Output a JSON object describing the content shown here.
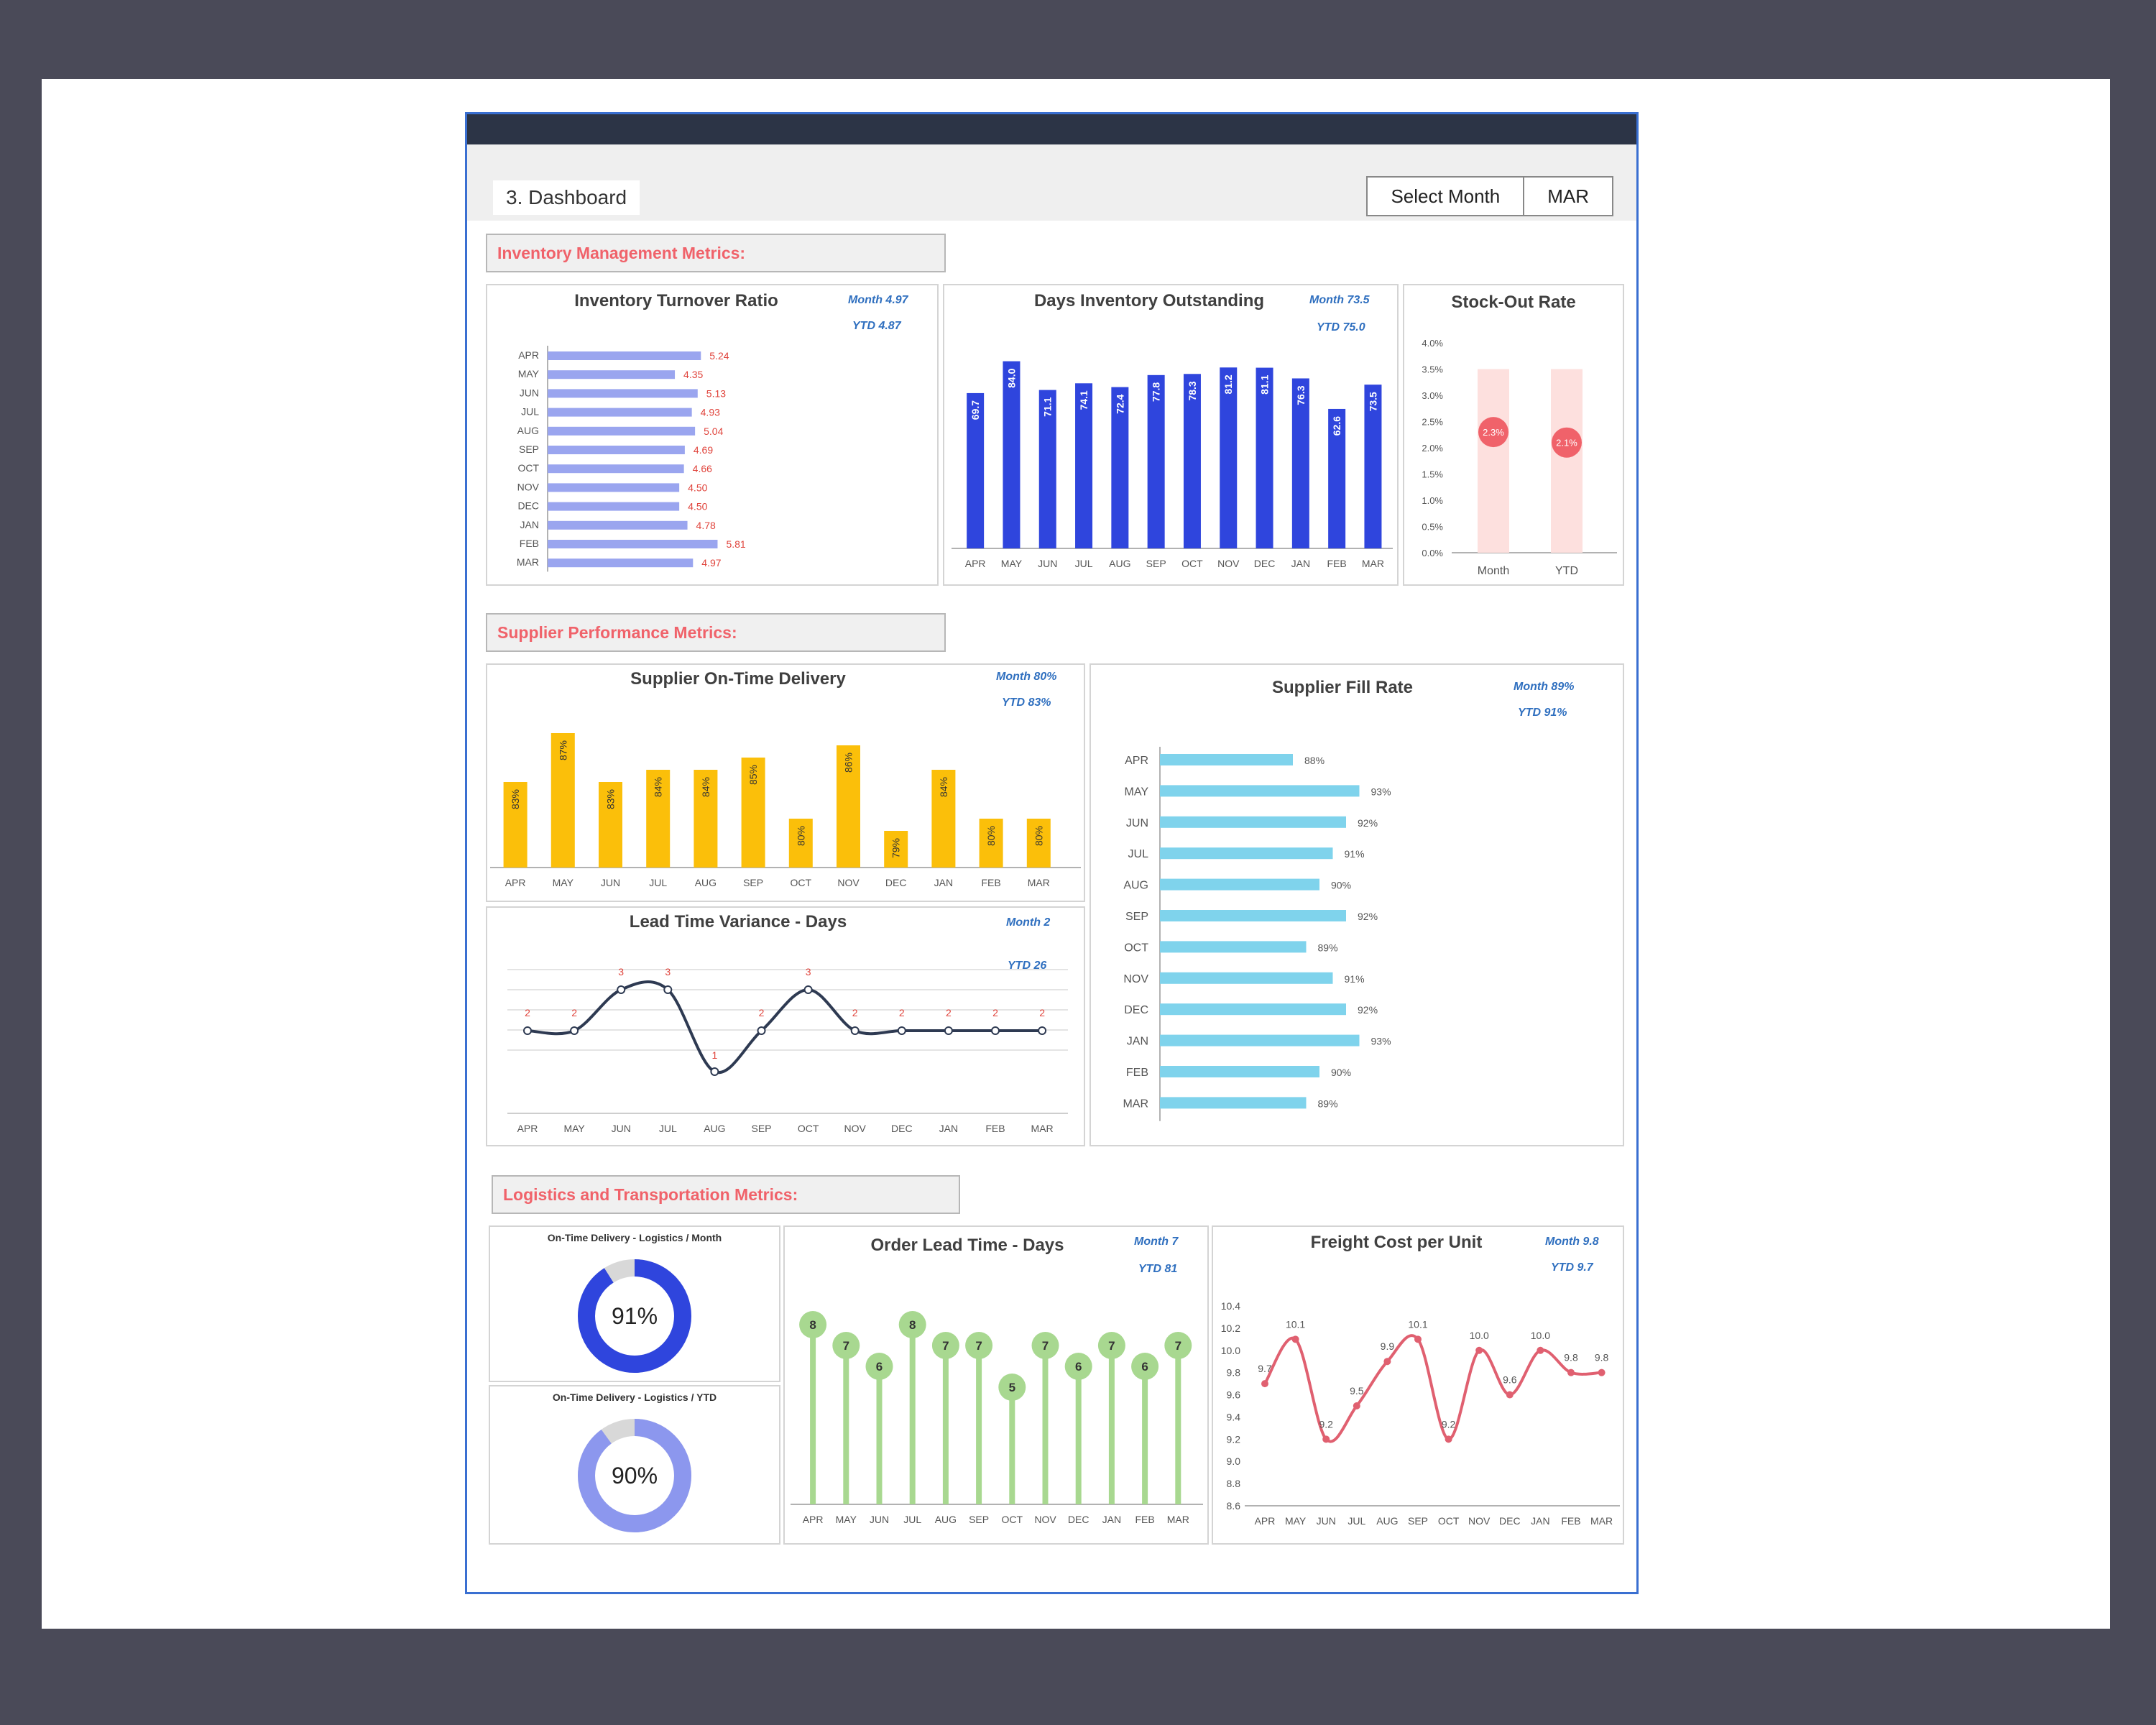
{
  "header": {
    "title": "3. Dashboard",
    "select_label": "Select Month",
    "select_value": "MAR"
  },
  "sections": {
    "inventory": "Inventory Management Metrics:",
    "supplier": "Supplier Performance Metrics:",
    "logistics": "Logistics and Transportation Metrics:"
  },
  "kpis": {
    "turnover": {
      "month": "Month 4.97",
      "ytd": "YTD 4.87"
    },
    "dio": {
      "month": "Month 73.5",
      "ytd": "YTD 75.0"
    },
    "otd": {
      "month": "Month 80%",
      "ytd": "YTD 83%"
    },
    "ltv": {
      "month": "Month 2",
      "ytd": "YTD 26"
    },
    "fill": {
      "month": "Month 89%",
      "ytd": "YTD 91%"
    },
    "olt": {
      "month": "Month 7",
      "ytd": "YTD 81"
    },
    "freight": {
      "month": "Month 9.8",
      "ytd": "YTD 9.7"
    }
  },
  "chart_data": [
    {
      "id": "turnover",
      "type": "bar",
      "orientation": "horizontal",
      "title": "Inventory Turnover Ratio",
      "categories": [
        "APR",
        "MAY",
        "JUN",
        "JUL",
        "AUG",
        "SEP",
        "OCT",
        "NOV",
        "DEC",
        "JAN",
        "FEB",
        "MAR"
      ],
      "values": [
        5.24,
        4.35,
        5.13,
        4.93,
        5.04,
        4.69,
        4.66,
        4.5,
        4.5,
        4.78,
        5.81,
        4.97
      ],
      "labels": [
        "5.24",
        "4.35",
        "5.13",
        "4.93",
        "5.04",
        "4.69",
        "4.66",
        "4.50",
        "4.50",
        "4.78",
        "5.81",
        "4.97"
      ],
      "color": "#9aa5ef",
      "label_color": "#e0443c"
    },
    {
      "id": "dio",
      "type": "bar",
      "title": "Days Inventory Outstanding",
      "categories": [
        "APR",
        "MAY",
        "JUN",
        "JUL",
        "AUG",
        "SEP",
        "OCT",
        "NOV",
        "DEC",
        "JAN",
        "FEB",
        "MAR"
      ],
      "values": [
        69.7,
        84.0,
        71.1,
        74.1,
        72.4,
        77.8,
        78.3,
        81.2,
        81.1,
        76.3,
        62.6,
        73.5
      ],
      "labels": [
        "69.7",
        "84.0",
        "71.1",
        "74.1",
        "72.4",
        "77.8",
        "78.3",
        "81.2",
        "81.1",
        "76.3",
        "62.6",
        "73.5"
      ],
      "color": "#2f45dd"
    },
    {
      "id": "stockout",
      "type": "scatter",
      "title": "Stock-Out Rate",
      "categories": [
        "Month",
        "YTD"
      ],
      "values": [
        2.3,
        2.1
      ],
      "labels": [
        "2.3%",
        "2.1%"
      ],
      "ylim": [
        0,
        4
      ],
      "yticks": [
        "0.0%",
        "0.5%",
        "1.0%",
        "1.5%",
        "2.0%",
        "2.5%",
        "3.0%",
        "3.5%",
        "4.0%"
      ],
      "color": "#f0626a",
      "band_color": "#fde0de"
    },
    {
      "id": "otd",
      "type": "bar",
      "title": "Supplier On-Time Delivery",
      "categories": [
        "APR",
        "MAY",
        "JUN",
        "JUL",
        "AUG",
        "SEP",
        "OCT",
        "NOV",
        "DEC",
        "JAN",
        "FEB",
        "MAR"
      ],
      "values": [
        83,
        87,
        83,
        84,
        84,
        85,
        80,
        86,
        79,
        84,
        80,
        80
      ],
      "labels": [
        "83%",
        "87%",
        "83%",
        "84%",
        "84%",
        "85%",
        "80%",
        "86%",
        "79%",
        "84%",
        "80%",
        "80%"
      ],
      "color": "#fbbf0a"
    },
    {
      "id": "ltv",
      "type": "line",
      "title": "Lead Time Variance - Days",
      "categories": [
        "APR",
        "MAY",
        "JUN",
        "JUL",
        "AUG",
        "SEP",
        "OCT",
        "NOV",
        "DEC",
        "JAN",
        "FEB",
        "MAR"
      ],
      "values": [
        2,
        2,
        3,
        3,
        1,
        2,
        3,
        2,
        2,
        2,
        2,
        2
      ],
      "labels": [
        "2",
        "2",
        "3",
        "3",
        "1",
        "2",
        "3",
        "2",
        "2",
        "2",
        "2",
        "2"
      ],
      "color": "#2e3a52"
    },
    {
      "id": "fill",
      "type": "bar",
      "orientation": "horizontal",
      "title": "Supplier Fill Rate",
      "categories": [
        "APR",
        "MAY",
        "JUN",
        "JUL",
        "AUG",
        "SEP",
        "OCT",
        "NOV",
        "DEC",
        "JAN",
        "FEB",
        "MAR"
      ],
      "values": [
        88,
        93,
        92,
        91,
        90,
        92,
        89,
        91,
        92,
        93,
        90,
        89
      ],
      "labels": [
        "88%",
        "93%",
        "92%",
        "91%",
        "90%",
        "92%",
        "89%",
        "91%",
        "92%",
        "93%",
        "90%",
        "89%"
      ],
      "color": "#7fd3ec"
    },
    {
      "id": "donut_month",
      "type": "pie",
      "title": "On-Time Delivery - Logistics / Month",
      "values": [
        91
      ],
      "labels": [
        "91%"
      ],
      "color": "#2f45dd"
    },
    {
      "id": "donut_ytd",
      "type": "pie",
      "title": "On-Time Delivery - Logistics / YTD",
      "values": [
        90
      ],
      "labels": [
        "90%"
      ],
      "color": "#8c97ee"
    },
    {
      "id": "olt",
      "type": "bar",
      "title": "Order Lead Time - Days",
      "categories": [
        "APR",
        "MAY",
        "JUN",
        "JUL",
        "AUG",
        "SEP",
        "OCT",
        "NOV",
        "DEC",
        "JAN",
        "FEB",
        "MAR"
      ],
      "values": [
        8,
        7,
        6,
        8,
        7,
        7,
        5,
        7,
        6,
        7,
        6,
        7
      ],
      "labels": [
        "8",
        "7",
        "6",
        "8",
        "7",
        "7",
        "5",
        "7",
        "6",
        "7",
        "6",
        "7"
      ],
      "color": "#a8d890"
    },
    {
      "id": "freight",
      "type": "line",
      "title": "Freight Cost per Unit",
      "categories": [
        "APR",
        "MAY",
        "JUN",
        "JUL",
        "AUG",
        "SEP",
        "OCT",
        "NOV",
        "DEC",
        "JAN",
        "FEB",
        "MAR"
      ],
      "values": [
        9.7,
        10.1,
        9.2,
        9.5,
        9.9,
        10.1,
        9.2,
        10.0,
        9.6,
        10.0,
        9.8,
        9.8
      ],
      "labels": [
        "9.7",
        "10.1",
        "9.2",
        "9.5",
        "9.9",
        "10.1",
        "9.2",
        "10.0",
        "9.6",
        "10.0",
        "9.8",
        "9.8"
      ],
      "ylim": [
        8.6,
        10.4
      ],
      "yticks": [
        "8.6",
        "8.8",
        "9.0",
        "9.2",
        "9.4",
        "9.6",
        "9.8",
        "10.0",
        "10.2",
        "10.4"
      ],
      "color": "#e06070"
    }
  ]
}
